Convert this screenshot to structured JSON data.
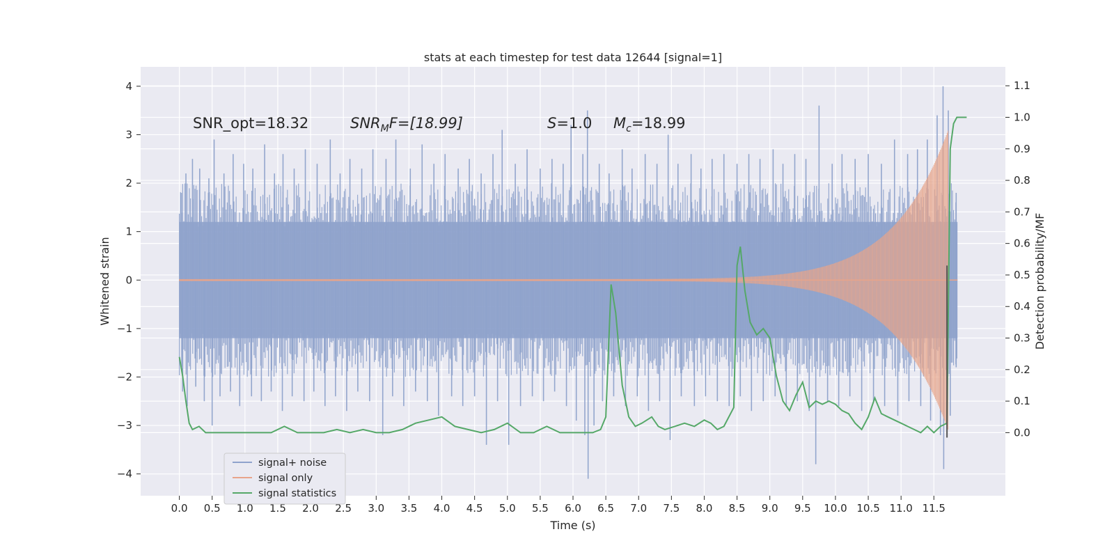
{
  "chart_data": {
    "type": "line",
    "title": "stats at each timestep for test data 12644 [signal=1]",
    "xlabel": "Time (s)",
    "ylabel": "Whitened strain",
    "ylabel_right": "Detection probability/MF",
    "xlim": [
      -0.59,
      12.59
    ],
    "ylim": [
      -4.45,
      4.4
    ],
    "ylim_right": [
      -0.2,
      1.16
    ],
    "x_ticks": [
      "0.0",
      "0.5",
      "1.0",
      "1.5",
      "2.0",
      "2.5",
      "3.0",
      "3.5",
      "4.0",
      "4.5",
      "5.0",
      "5.5",
      "6.0",
      "6.5",
      "7.0",
      "7.5",
      "8.0",
      "8.5",
      "9.0",
      "9.5",
      "10.0",
      "10.5",
      "11.0",
      "11.5"
    ],
    "y_ticks": [
      "4",
      "3",
      "2",
      "1",
      "0",
      "−1",
      "−2",
      "−3",
      "−4"
    ],
    "y_ticks_right": [
      "1.1",
      "1.0",
      "0.9",
      "0.8",
      "0.7",
      "0.6",
      "0.5",
      "0.4",
      "0.3",
      "0.2",
      "0.1",
      "0.0"
    ],
    "annotations": {
      "snr_opt": "SNR_opt=18.32",
      "snr_mf_name": "SNR",
      "snr_mf_sub": "M",
      "snr_mf_rest": "F=[18.99]",
      "s_name": "S",
      "s_rest": "=1.0",
      "mc_name": "M",
      "mc_sub": "c",
      "mc_rest": "=18.99"
    },
    "legend": {
      "location": "lower-left",
      "entries": [
        "signal+ noise",
        "signal only",
        "signal statistics"
      ]
    },
    "series": [
      {
        "name": "signal+ noise",
        "color": "#8fa3cc",
        "envelope": {
          "x": [
            0.0,
            11.86
          ],
          "upper_typical": 2.0,
          "lower_typical": -2.0,
          "core": [
            -1.2,
            1.2
          ]
        },
        "spikes": [
          {
            "x": 0.03,
            "y": 1.8
          },
          {
            "x": 0.1,
            "y": 2.2
          },
          {
            "x": 0.2,
            "y": 2.5
          },
          {
            "x": 0.31,
            "y": 2.3
          },
          {
            "x": 0.45,
            "y": 2.1
          },
          {
            "x": 0.53,
            "y": 2.9
          },
          {
            "x": 0.68,
            "y": 2.2
          },
          {
            "x": 0.82,
            "y": 2.6
          },
          {
            "x": 0.98,
            "y": 2.4
          },
          {
            "x": 1.12,
            "y": 2.3
          },
          {
            "x": 1.3,
            "y": 2.8
          },
          {
            "x": 1.45,
            "y": 2.2
          },
          {
            "x": 1.58,
            "y": 2.6
          },
          {
            "x": 1.75,
            "y": 2.3
          },
          {
            "x": 1.92,
            "y": 2.7
          },
          {
            "x": 2.1,
            "y": 2.4
          },
          {
            "x": 2.3,
            "y": 2.9
          },
          {
            "x": 2.45,
            "y": 2.2
          },
          {
            "x": 2.6,
            "y": 2.5
          },
          {
            "x": 2.78,
            "y": 2.3
          },
          {
            "x": 2.95,
            "y": 2.7
          },
          {
            "x": 3.15,
            "y": 2.5
          },
          {
            "x": 3.3,
            "y": 2.9
          },
          {
            "x": 3.52,
            "y": 2.3
          },
          {
            "x": 3.7,
            "y": 2.8
          },
          {
            "x": 3.88,
            "y": 2.4
          },
          {
            "x": 4.05,
            "y": 2.6
          },
          {
            "x": 4.25,
            "y": 2.3
          },
          {
            "x": 4.42,
            "y": 2.5
          },
          {
            "x": 4.6,
            "y": 2.2
          },
          {
            "x": 4.78,
            "y": 2.6
          },
          {
            "x": 4.92,
            "y": 3.1
          },
          {
            "x": 5.12,
            "y": 2.4
          },
          {
            "x": 5.3,
            "y": 2.7
          },
          {
            "x": 5.5,
            "y": 2.3
          },
          {
            "x": 5.68,
            "y": 2.5
          },
          {
            "x": 5.85,
            "y": 2.4
          },
          {
            "x": 5.97,
            "y": 3.2
          },
          {
            "x": 6.15,
            "y": 2.6
          },
          {
            "x": 6.22,
            "y": 3.5
          },
          {
            "x": 6.4,
            "y": 2.4
          },
          {
            "x": 6.55,
            "y": 2.2
          },
          {
            "x": 6.75,
            "y": 2.7
          },
          {
            "x": 6.9,
            "y": 2.3
          },
          {
            "x": 7.1,
            "y": 2.6
          },
          {
            "x": 7.28,
            "y": 2.4
          },
          {
            "x": 7.45,
            "y": 3.0
          },
          {
            "x": 7.6,
            "y": 2.4
          },
          {
            "x": 7.8,
            "y": 2.6
          },
          {
            "x": 7.95,
            "y": 2.3
          },
          {
            "x": 8.12,
            "y": 2.5
          },
          {
            "x": 8.3,
            "y": 2.6
          },
          {
            "x": 8.5,
            "y": 2.4
          },
          {
            "x": 8.68,
            "y": 2.6
          },
          {
            "x": 8.85,
            "y": 2.5
          },
          {
            "x": 9.05,
            "y": 2.7
          },
          {
            "x": 9.2,
            "y": 2.4
          },
          {
            "x": 9.38,
            "y": 2.6
          },
          {
            "x": 9.55,
            "y": 2.5
          },
          {
            "x": 9.75,
            "y": 3.6
          },
          {
            "x": 9.95,
            "y": 2.4
          },
          {
            "x": 10.1,
            "y": 2.6
          },
          {
            "x": 10.3,
            "y": 2.5
          },
          {
            "x": 10.5,
            "y": 2.6
          },
          {
            "x": 10.7,
            "y": 2.4
          },
          {
            "x": 10.9,
            "y": 2.9
          },
          {
            "x": 11.1,
            "y": 2.6
          },
          {
            "x": 11.25,
            "y": 2.7
          },
          {
            "x": 11.4,
            "y": 2.9
          },
          {
            "x": 11.55,
            "y": 3.4
          },
          {
            "x": 11.64,
            "y": 4.0
          },
          {
            "x": 11.72,
            "y": 3.5
          },
          {
            "x": 11.84,
            "y": 1.8
          },
          {
            "x": 0.05,
            "y": -2.3
          },
          {
            "x": 0.12,
            "y": -2.6
          },
          {
            "x": 0.25,
            "y": -2.2
          },
          {
            "x": 0.38,
            "y": -2.5
          },
          {
            "x": 0.5,
            "y": -3.0
          },
          {
            "x": 0.62,
            "y": -2.4
          },
          {
            "x": 0.78,
            "y": -2.3
          },
          {
            "x": 0.92,
            "y": -2.6
          },
          {
            "x": 1.1,
            "y": -2.4
          },
          {
            "x": 1.25,
            "y": -2.5
          },
          {
            "x": 1.4,
            "y": -2.3
          },
          {
            "x": 1.57,
            "y": -2.7
          },
          {
            "x": 1.72,
            "y": -2.4
          },
          {
            "x": 1.9,
            "y": -2.5
          },
          {
            "x": 2.05,
            "y": -2.3
          },
          {
            "x": 2.22,
            "y": -2.6
          },
          {
            "x": 2.38,
            "y": -2.4
          },
          {
            "x": 2.55,
            "y": -2.7
          },
          {
            "x": 2.72,
            "y": -2.3
          },
          {
            "x": 2.9,
            "y": -2.5
          },
          {
            "x": 3.1,
            "y": -3.2
          },
          {
            "x": 3.25,
            "y": -2.4
          },
          {
            "x": 3.42,
            "y": -2.6
          },
          {
            "x": 3.6,
            "y": -2.3
          },
          {
            "x": 3.78,
            "y": -2.5
          },
          {
            "x": 3.95,
            "y": -2.8
          },
          {
            "x": 4.15,
            "y": -2.4
          },
          {
            "x": 4.32,
            "y": -2.6
          },
          {
            "x": 4.5,
            "y": -2.4
          },
          {
            "x": 4.68,
            "y": -3.4
          },
          {
            "x": 4.85,
            "y": -2.5
          },
          {
            "x": 5.02,
            "y": -3.4
          },
          {
            "x": 5.2,
            "y": -2.6
          },
          {
            "x": 5.38,
            "y": -2.4
          },
          {
            "x": 5.55,
            "y": -2.5
          },
          {
            "x": 5.72,
            "y": -2.3
          },
          {
            "x": 5.9,
            "y": -2.6
          },
          {
            "x": 6.05,
            "y": -2.9
          },
          {
            "x": 6.18,
            "y": -3.2
          },
          {
            "x": 6.23,
            "y": -4.1
          },
          {
            "x": 6.32,
            "y": -3.0
          },
          {
            "x": 6.45,
            "y": -2.5
          },
          {
            "x": 6.62,
            "y": -2.4
          },
          {
            "x": 6.8,
            "y": -2.6
          },
          {
            "x": 6.98,
            "y": -2.4
          },
          {
            "x": 7.15,
            "y": -2.7
          },
          {
            "x": 7.32,
            "y": -2.5
          },
          {
            "x": 7.48,
            "y": -3.3
          },
          {
            "x": 7.65,
            "y": -2.4
          },
          {
            "x": 7.85,
            "y": -2.6
          },
          {
            "x": 8.02,
            "y": -2.4
          },
          {
            "x": 8.2,
            "y": -2.5
          },
          {
            "x": 8.38,
            "y": -2.6
          },
          {
            "x": 8.55,
            "y": -2.4
          },
          {
            "x": 8.72,
            "y": -2.7
          },
          {
            "x": 8.9,
            "y": -2.5
          },
          {
            "x": 9.08,
            "y": -2.4
          },
          {
            "x": 9.25,
            "y": -2.6
          },
          {
            "x": 9.42,
            "y": -2.5
          },
          {
            "x": 9.6,
            "y": -2.7
          },
          {
            "x": 9.7,
            "y": -3.8
          },
          {
            "x": 9.88,
            "y": -2.5
          },
          {
            "x": 10.05,
            "y": -2.6
          },
          {
            "x": 10.22,
            "y": -2.4
          },
          {
            "x": 10.4,
            "y": -2.7
          },
          {
            "x": 10.58,
            "y": -2.5
          },
          {
            "x": 10.75,
            "y": -2.6
          },
          {
            "x": 10.95,
            "y": -2.8
          },
          {
            "x": 11.12,
            "y": -2.5
          },
          {
            "x": 11.3,
            "y": -2.6
          },
          {
            "x": 11.45,
            "y": -2.9
          },
          {
            "x": 11.6,
            "y": -3.2
          },
          {
            "x": 11.65,
            "y": -3.9
          },
          {
            "x": 11.75,
            "y": -2.8
          },
          {
            "x": 11.84,
            "y": -1.8
          }
        ]
      },
      {
        "name": "signal only",
        "color": "#e8a48a",
        "chirp": {
          "x_start": 0.0,
          "x_merge": 11.72,
          "amp_start": 0.02,
          "amp_peak": 3.1
        }
      },
      {
        "name": "signal statistics",
        "color": "#55a868",
        "axis": "right",
        "x": [
          0.0,
          0.05,
          0.1,
          0.15,
          0.2,
          0.3,
          0.4,
          0.5,
          0.6,
          0.8,
          1.0,
          1.2,
          1.4,
          1.6,
          1.8,
          2.0,
          2.2,
          2.4,
          2.6,
          2.8,
          3.0,
          3.2,
          3.4,
          3.6,
          3.8,
          4.0,
          4.2,
          4.4,
          4.6,
          4.8,
          5.0,
          5.2,
          5.4,
          5.6,
          5.8,
          6.0,
          6.2,
          6.3,
          6.42,
          6.5,
          6.58,
          6.65,
          6.75,
          6.85,
          6.95,
          7.05,
          7.2,
          7.3,
          7.4,
          7.55,
          7.7,
          7.85,
          8.0,
          8.1,
          8.2,
          8.3,
          8.45,
          8.5,
          8.55,
          8.62,
          8.7,
          8.8,
          8.9,
          9.0,
          9.1,
          9.2,
          9.3,
          9.4,
          9.5,
          9.6,
          9.7,
          9.8,
          9.9,
          10.0,
          10.1,
          10.2,
          10.3,
          10.4,
          10.5,
          10.6,
          10.7,
          10.8,
          10.9,
          11.0,
          11.1,
          11.2,
          11.3,
          11.4,
          11.5,
          11.6,
          11.7,
          11.75,
          11.8,
          11.85,
          11.9,
          12.0
        ],
        "values": [
          0.24,
          0.18,
          0.1,
          0.03,
          0.01,
          0.02,
          0.0,
          0.0,
          0.0,
          0.0,
          0.0,
          0.0,
          0.0,
          0.02,
          0.0,
          0.0,
          0.0,
          0.01,
          0.0,
          0.01,
          0.0,
          0.0,
          0.01,
          0.03,
          0.04,
          0.05,
          0.02,
          0.01,
          0.0,
          0.01,
          0.03,
          0.0,
          0.0,
          0.02,
          0.0,
          0.0,
          0.0,
          0.0,
          0.01,
          0.05,
          0.47,
          0.38,
          0.15,
          0.05,
          0.02,
          0.03,
          0.05,
          0.02,
          0.01,
          0.02,
          0.03,
          0.02,
          0.04,
          0.03,
          0.01,
          0.02,
          0.08,
          0.53,
          0.59,
          0.45,
          0.35,
          0.31,
          0.33,
          0.3,
          0.18,
          0.1,
          0.07,
          0.12,
          0.16,
          0.08,
          0.1,
          0.09,
          0.1,
          0.09,
          0.07,
          0.06,
          0.03,
          0.01,
          0.05,
          0.11,
          0.06,
          0.05,
          0.04,
          0.03,
          0.02,
          0.01,
          0.0,
          0.02,
          0.0,
          0.02,
          0.03,
          0.9,
          0.98,
          1.0,
          1.0,
          1.0
        ]
      },
      {
        "name": "threshold marker",
        "color": "#555555",
        "x": 11.7,
        "y_range": [
          -3.25,
          0.3
        ]
      }
    ]
  }
}
